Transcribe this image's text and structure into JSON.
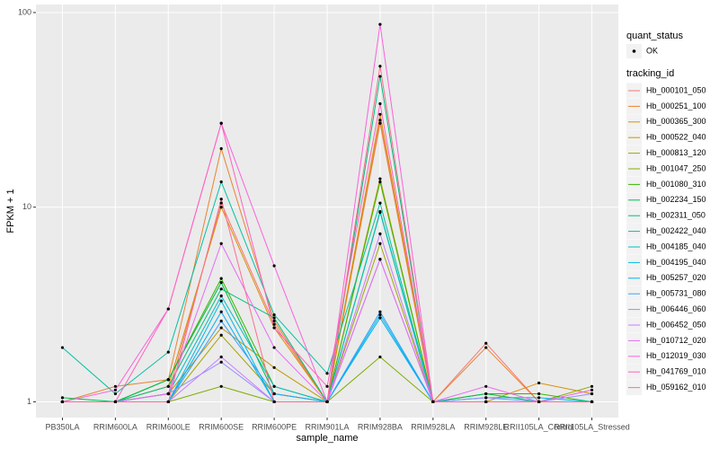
{
  "chart_data": {
    "type": "line",
    "x_label": "sample_name",
    "y_label": "FPKM + 1",
    "log_scale": true,
    "grid": true,
    "categories": [
      "PB350LA",
      "RRIM600LA",
      "RRIM600LE",
      "RRIM600SE",
      "RRIM600PE",
      "RRIM901LA",
      "RRIM928BA",
      "RRIM928LA",
      "RRIM928LE",
      "RRII105LA_Control",
      "RRII105LA_Stressed"
    ],
    "ylim": [
      0.83,
      110
    ],
    "yticks": [
      1,
      10,
      100
    ],
    "point_legend_title": "quant_status",
    "point_legend": [
      {
        "name": "OK",
        "color": "#000000"
      }
    ],
    "legend_title": "tracking_id",
    "series": [
      {
        "name": "Hb_000101_050",
        "color": "#F8766D",
        "values": [
          1,
          1,
          1.1,
          10.5,
          2.5,
          1,
          28,
          1,
          2,
          1,
          1
        ]
      },
      {
        "name": "Hb_000251_100",
        "color": "#EA8331",
        "values": [
          1,
          1.2,
          1.3,
          20,
          2.6,
          1,
          27,
          1,
          1.9,
          1,
          1
        ]
      },
      {
        "name": "Hb_000365_300",
        "color": "#D89000",
        "values": [
          1,
          1,
          1.2,
          10,
          2.4,
          1,
          30,
          1,
          1,
          1.25,
          1.1
        ]
      },
      {
        "name": "Hb_000522_040",
        "color": "#C09B00",
        "values": [
          1,
          1,
          1.1,
          2.4,
          1.5,
          1,
          14,
          1,
          1,
          1,
          1
        ]
      },
      {
        "name": "Hb_000813_120",
        "color": "#A3A500",
        "values": [
          1,
          1,
          1,
          2.2,
          1.1,
          1,
          6.5,
          1,
          1,
          1,
          1
        ]
      },
      {
        "name": "Hb_001047_250",
        "color": "#7CAE00",
        "values": [
          1,
          1,
          1,
          1.2,
          1,
          1,
          1.7,
          1,
          1,
          1,
          1.2
        ]
      },
      {
        "name": "Hb_001080_310",
        "color": "#39B600",
        "values": [
          1,
          1,
          1.3,
          4.3,
          1.2,
          1,
          13.5,
          1,
          1.1,
          1.1,
          1
        ]
      },
      {
        "name": "Hb_002234_150",
        "color": "#00BB4E",
        "values": [
          1.05,
          1,
          1.3,
          4.1,
          1.1,
          1,
          9.5,
          1,
          1.1,
          1,
          1
        ]
      },
      {
        "name": "Hb_002311_050",
        "color": "#00BF7D",
        "values": [
          1,
          1,
          1.2,
          3.8,
          2.7,
          1,
          47,
          1,
          1,
          1,
          1
        ]
      },
      {
        "name": "Hb_002422_040",
        "color": "#00C1A3",
        "values": [
          1.9,
          1.1,
          1.8,
          13.5,
          2.8,
          1.4,
          10.5,
          1,
          1,
          1,
          1
        ]
      },
      {
        "name": "Hb_004185_040",
        "color": "#00BFC4",
        "values": [
          1,
          1,
          1.1,
          3.5,
          1.2,
          1,
          9.4,
          1,
          1,
          1,
          1
        ]
      },
      {
        "name": "Hb_004195_040",
        "color": "#00BAE0",
        "values": [
          1,
          1,
          1,
          3.3,
          1,
          1,
          2.8,
          1,
          1,
          1,
          1
        ]
      },
      {
        "name": "Hb_005257_020",
        "color": "#00B0F6",
        "values": [
          1,
          1,
          1,
          2.9,
          1,
          1,
          2.7,
          1,
          1.05,
          1.05,
          1
        ]
      },
      {
        "name": "Hb_005731_080",
        "color": "#35A2FF",
        "values": [
          1,
          1,
          1,
          2.6,
          1.1,
          1,
          2.9,
          1,
          1,
          1,
          1
        ]
      },
      {
        "name": "Hb_006446_060",
        "color": "#9590FF",
        "values": [
          1,
          1,
          1.1,
          1.6,
          1,
          1,
          5.4,
          1,
          1.05,
          1,
          1.1
        ]
      },
      {
        "name": "Hb_006452_050",
        "color": "#C77CFF",
        "values": [
          1,
          1,
          1,
          1.7,
          1,
          1,
          7.3,
          1,
          1,
          1,
          1
        ]
      },
      {
        "name": "Hb_010712_020",
        "color": "#E76BF3",
        "values": [
          1,
          1,
          1.1,
          6.5,
          1.9,
          1,
          5.4,
          1,
          1.2,
          1,
          1
        ]
      },
      {
        "name": "Hb_012019_030",
        "color": "#FA62DB",
        "values": [
          1,
          1.15,
          3,
          27,
          5,
          1,
          87,
          1,
          1,
          1,
          1.15
        ]
      },
      {
        "name": "Hb_041769_010",
        "color": "#FF62BC",
        "values": [
          1,
          1,
          3,
          27,
          2.4,
          1.2,
          34,
          1,
          1,
          1,
          1
        ]
      },
      {
        "name": "Hb_059162_010",
        "color": "#FF6C91",
        "values": [
          1,
          1,
          1,
          11,
          1,
          1,
          53,
          1,
          1,
          1,
          1
        ]
      }
    ]
  }
}
